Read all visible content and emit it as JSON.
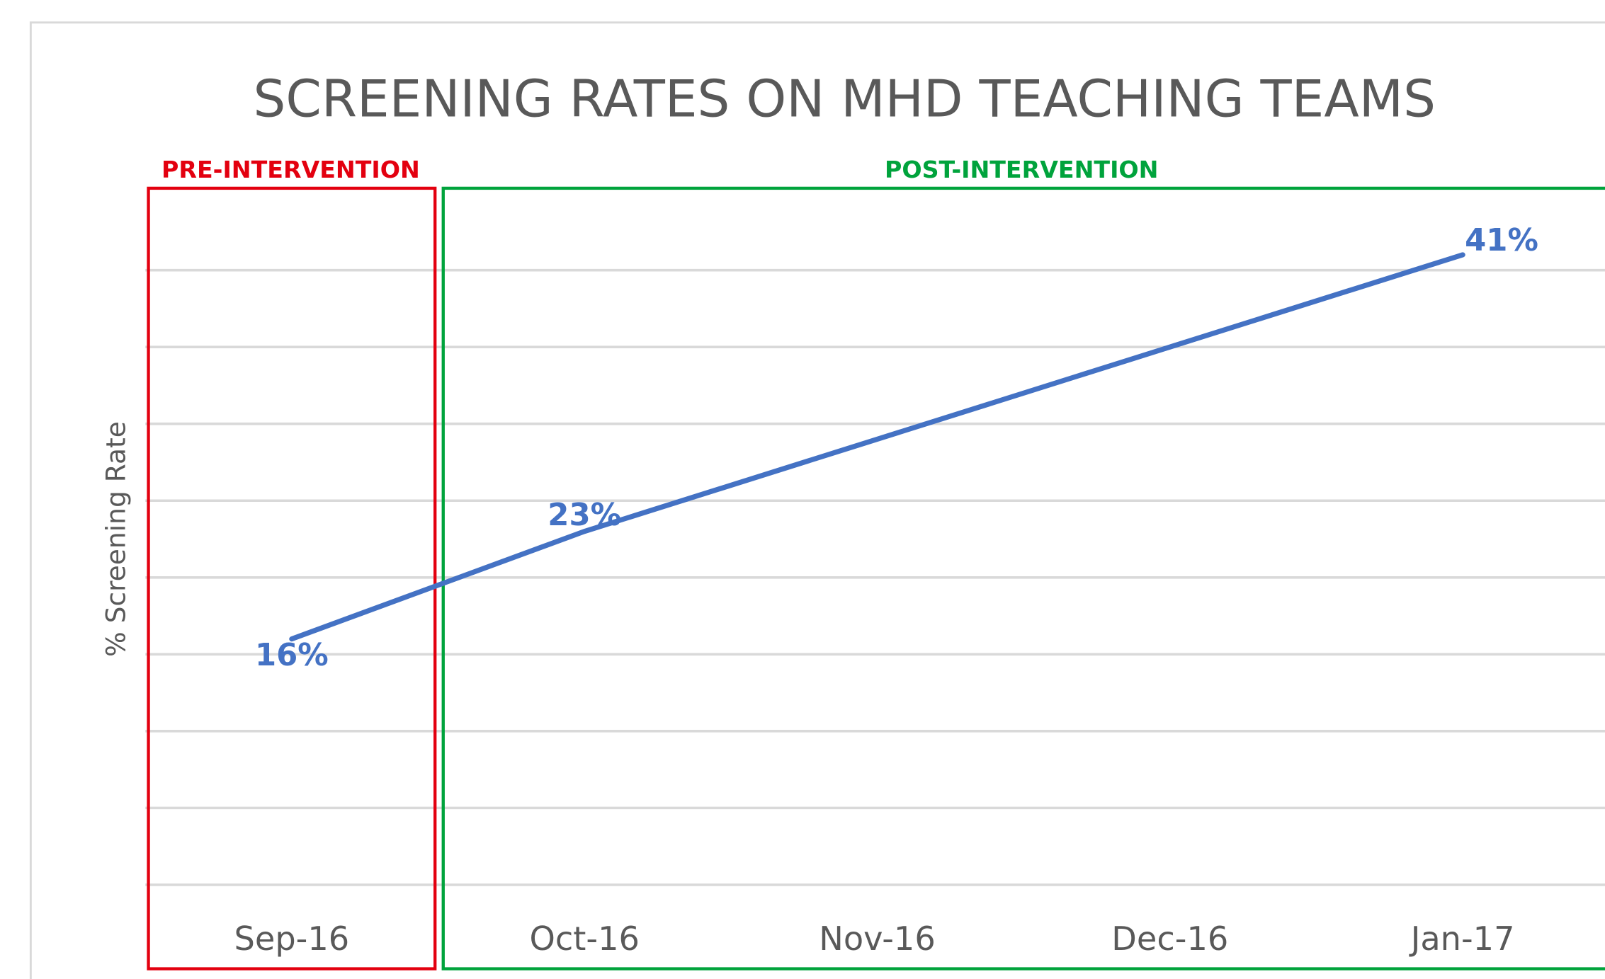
{
  "chart_data": {
    "type": "line",
    "title": "SCREENING RATES ON MHD TEACHING TEAMS",
    "y_label": "% Screening Rate",
    "annotations": [
      {
        "text": "PRE-INTERVENTION",
        "color": "#e3000f"
      },
      {
        "text": "POST-INTERVENTION",
        "color": "#00a33c"
      }
    ],
    "categories": [
      "Sep-16",
      "Oct-16",
      "Nov-16",
      "Dec-16",
      "Jan-17"
    ],
    "series": [
      {
        "name": "% Screening Rate",
        "color": "#4472c4",
        "values": [
          16,
          23,
          29,
          35,
          41
        ],
        "value_labels": [
          "16%",
          "23%",
          null,
          null,
          "41%"
        ]
      }
    ],
    "ylim": [
      -5,
      45
    ],
    "yticks": [
      0,
      5,
      10,
      15,
      20,
      25,
      30,
      35,
      40
    ],
    "grid": true
  }
}
